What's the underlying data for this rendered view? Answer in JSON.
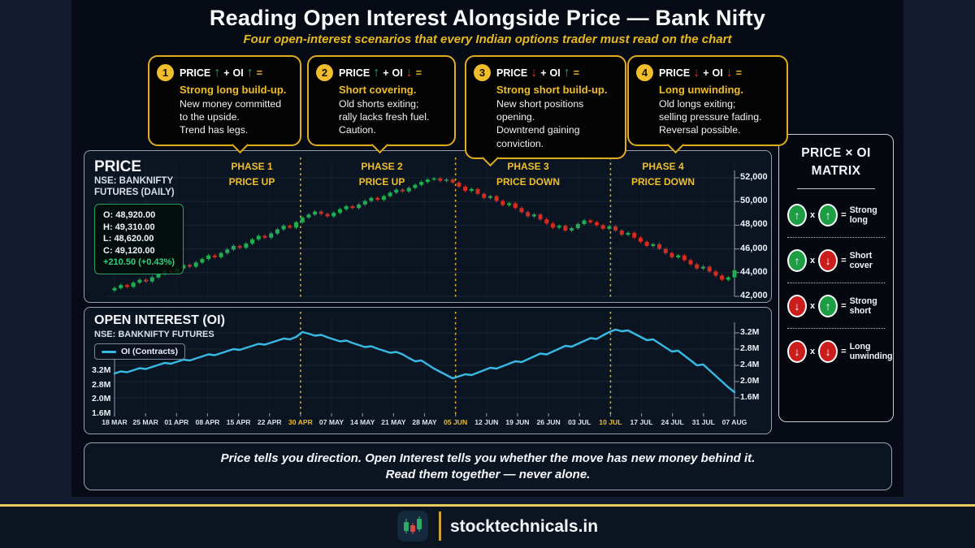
{
  "header": {
    "title": "Reading Open Interest Alongside Price — Bank Nifty",
    "subtitle": "Four open-interest scenarios that every Indian options trader must read on the chart"
  },
  "colors": {
    "gold": "#E8B923",
    "green": "#1FB054",
    "red": "#D7342B",
    "cyan": "#38B9E3"
  },
  "scenarios": [
    {
      "num": "1",
      "price_label": "PRICE",
      "price_arrow": "↑",
      "plus": "+",
      "oi_label": "OI",
      "oi_arrow": "↑",
      "equals": "=",
      "headline": "Strong long build-up.",
      "lines": [
        "New money committed",
        "to the upside.",
        "Trend has legs."
      ]
    },
    {
      "num": "2",
      "price_label": "PRICE",
      "price_arrow": "↑",
      "plus": "+",
      "oi_label": "OI",
      "oi_arrow": "↓",
      "equals": "=",
      "headline": "Short covering.",
      "lines": [
        "Old shorts exiting;",
        "rally lacks fresh fuel.",
        "Caution."
      ]
    },
    {
      "num": "3",
      "price_label": "PRICE",
      "price_arrow": "↓",
      "plus": "+",
      "oi_label": "OI",
      "oi_arrow": "↑",
      "equals": "=",
      "headline": "Strong short build-up.",
      "lines": [
        "New short positions",
        "opening.",
        "Downtrend gaining",
        "conviction."
      ]
    },
    {
      "num": "4",
      "price_label": "PRICE",
      "price_arrow": "↓",
      "plus": "+",
      "oi_label": "OI",
      "oi_arrow": "↓",
      "equals": "=",
      "headline": "Long unwinding.",
      "lines": [
        "Old longs exiting;",
        "selling pressure fading.",
        "Reversal possible."
      ]
    }
  ],
  "matrix": {
    "title1": "PRICE × OI",
    "title2": "MATRIX",
    "times": "x",
    "rows": [
      {
        "price": "up",
        "oi": "up",
        "price_arrow": "↑",
        "oi_arrow": "↑",
        "equals": "=",
        "label": "Strong long"
      },
      {
        "price": "up",
        "oi": "down",
        "price_arrow": "↑",
        "oi_arrow": "↓",
        "equals": "=",
        "label": "Short cover"
      },
      {
        "price": "down",
        "oi": "up",
        "price_arrow": "↓",
        "oi_arrow": "↑",
        "equals": "=",
        "label": "Strong short"
      },
      {
        "price": "down",
        "oi": "down",
        "price_arrow": "↓",
        "oi_arrow": "↓",
        "equals": "=",
        "label": "Long unwinding"
      }
    ]
  },
  "quote": {
    "line1": "Price tells you direction. Open Interest tells you whether the move has new money behind it.",
    "line2": "Read them together — never alone."
  },
  "footer": {
    "brand": "stocktechnicals.in"
  },
  "chart_data": [
    {
      "type": "candlestick",
      "panel_title": "PRICE",
      "panel_sub1": "NSE: BANKNIFTY",
      "panel_sub2": "FUTURES (DAILY)",
      "ohlc_lines": [
        "O:  48,920.00",
        "H:  49,310.00",
        "L:  48,620.00",
        "C:  49,120.00"
      ],
      "ohlc_change": "+210.50 (+0.43%)",
      "phases": [
        {
          "line1": "PHASE 1",
          "line2": "PRICE UP",
          "x_center": 310
        },
        {
          "line1": "PHASE 2",
          "line2": "PRICE UP",
          "x_center": 470
        },
        {
          "line1": "PHASE 3",
          "line2": "PRICE DOWN",
          "x_center": 650
        },
        {
          "line1": "PHASE 4",
          "line2": "PRICE DOWN",
          "x_center": 816
        }
      ],
      "y_tick_values": [
        52000,
        50000,
        48000,
        46000,
        44000,
        42000
      ],
      "y_tick_labels": [
        "52,000",
        "50,000",
        "48,000",
        "46,000",
        "44,000",
        "42,000"
      ],
      "ylim": [
        42000,
        52800
      ],
      "first_open": 42500,
      "closes": [
        42700,
        42950,
        42800,
        43150,
        43400,
        43250,
        43600,
        43900,
        44150,
        44000,
        44350,
        44650,
        44500,
        44850,
        45150,
        45450,
        45300,
        45650,
        45950,
        46250,
        46100,
        46450,
        46800,
        47100,
        46950,
        47300,
        47650,
        47950,
        47800,
        48250,
        48650,
        48900,
        49150,
        48950,
        48750,
        49050,
        49350,
        49600,
        49450,
        49750,
        50050,
        50300,
        50150,
        50450,
        50750,
        51000,
        50850,
        51150,
        51400,
        51650,
        51850,
        51950,
        51750,
        51850,
        51600,
        51250,
        50900,
        51050,
        50650,
        50300,
        50450,
        50050,
        49700,
        49850,
        49450,
        49100,
        48750,
        48900,
        48500,
        48150,
        47800,
        47950,
        47550,
        47750,
        48100,
        48400,
        48250,
        48000,
        47700,
        47900,
        47550,
        47200,
        47350,
        46950,
        46600,
        46250,
        46400,
        46000,
        45650,
        45300,
        45450,
        45050,
        44700,
        44350,
        44500,
        44100,
        43750,
        43400,
        43600,
        44200
      ]
    },
    {
      "type": "line",
      "panel_title": "OPEN INTEREST (OI)",
      "panel_sub": "NSE: BANKNIFTY FUTURES",
      "legend": "OI (Contracts)",
      "series_name": "OI (Contracts)",
      "unit": "M contracts",
      "left_tick_labels": [
        "3.2M",
        "2.8M",
        "2.0M",
        "1.6M"
      ],
      "right_tick_values": [
        3.2,
        2.8,
        2.4,
        2.0,
        1.6
      ],
      "right_tick_labels": [
        "3.2M",
        "2.8M",
        "2.4M",
        "2.0M",
        "1.6M"
      ],
      "dates": [
        "18 MAR",
        "25 MAR",
        "01 APR",
        "08 APR",
        "15 APR",
        "22 APR",
        "30 APR",
        "07 MAY",
        "14 MAY",
        "21 MAY",
        "28 MAY",
        "05 JUN",
        "12 JUN",
        "19 JUN",
        "26 JUN",
        "03 JUL",
        "10 JUL",
        "17 JUL",
        "24 JUL",
        "31 JUL",
        "07 AUG"
      ],
      "highlighted_dates": [
        6,
        11,
        16
      ],
      "phase_boundary_ticks": [
        6,
        11,
        16
      ],
      "values": [
        2.2,
        2.25,
        2.23,
        2.28,
        2.33,
        2.31,
        2.36,
        2.41,
        2.46,
        2.44,
        2.49,
        2.54,
        2.52,
        2.57,
        2.62,
        2.67,
        2.65,
        2.7,
        2.75,
        2.8,
        2.78,
        2.83,
        2.88,
        2.93,
        2.91,
        2.96,
        3.01,
        3.06,
        3.04,
        3.1,
        3.22,
        3.18,
        3.13,
        3.15,
        3.09,
        3.04,
        2.99,
        3.01,
        2.95,
        2.9,
        2.85,
        2.87,
        2.81,
        2.76,
        2.71,
        2.73,
        2.67,
        2.58,
        2.5,
        2.52,
        2.42,
        2.32,
        2.24,
        2.16,
        2.08,
        2.13,
        2.18,
        2.16,
        2.22,
        2.28,
        2.34,
        2.32,
        2.38,
        2.44,
        2.5,
        2.48,
        2.55,
        2.62,
        2.69,
        2.67,
        2.74,
        2.81,
        2.88,
        2.86,
        2.93,
        3.0,
        3.07,
        3.05,
        3.14,
        3.22,
        3.28,
        3.24,
        3.26,
        3.18,
        3.1,
        3.02,
        3.04,
        2.94,
        2.84,
        2.74,
        2.76,
        2.64,
        2.52,
        2.4,
        2.42,
        2.28,
        2.14,
        2.0,
        1.86,
        1.74
      ]
    }
  ]
}
